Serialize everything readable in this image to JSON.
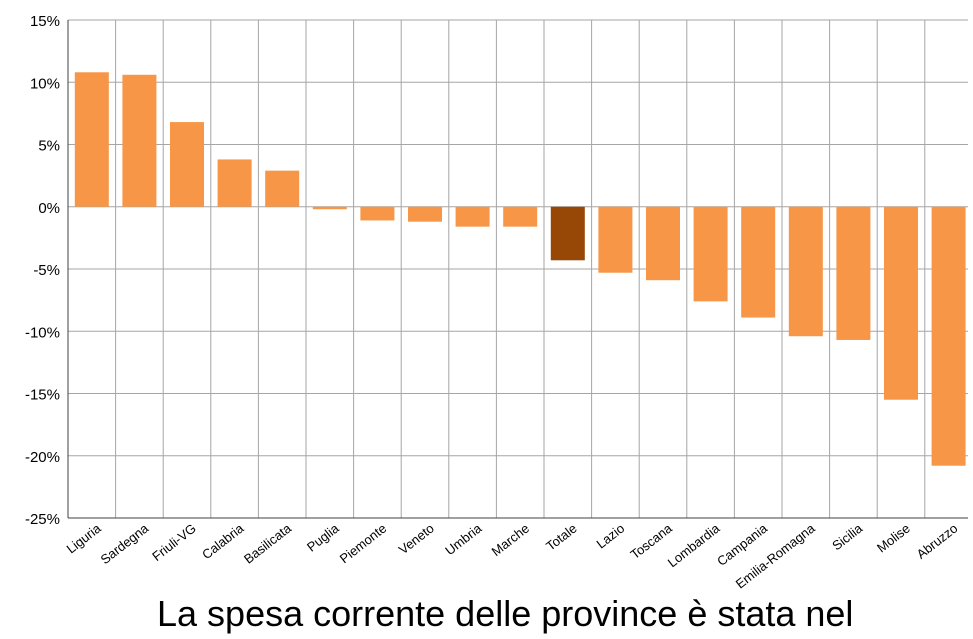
{
  "chart_data": {
    "type": "bar",
    "categories": [
      "Liguria",
      "Sardegna",
      "Friuli-VG",
      "Calabria",
      "Basilicata",
      "Puglia",
      "Piemonte",
      "Veneto",
      "Umbria",
      "Marche",
      "Totale",
      "Lazio",
      "Toscana",
      "Lombardia",
      "Campania",
      "Emilia-Romagna",
      "Sicilia",
      "Molise",
      "Abruzzo"
    ],
    "values": [
      10.8,
      10.6,
      6.8,
      3.8,
      2.9,
      -0.2,
      -1.1,
      -1.2,
      -1.6,
      -1.6,
      -4.3,
      -5.3,
      -5.9,
      -7.6,
      -8.9,
      -10.4,
      -10.7,
      -15.5,
      -20.8
    ],
    "highlight_category": "Totale",
    "ylim": [
      -25,
      15
    ],
    "yticks": [
      15,
      10,
      5,
      0,
      -5,
      -10,
      -15,
      -20,
      -25
    ],
    "ytick_labels": [
      "15%",
      "10%",
      "5%",
      "0%",
      "-5%",
      "-10%",
      "-15%",
      "-20%",
      "-25%"
    ],
    "colors": {
      "bar": "#F79646",
      "highlight": "#974806",
      "grid": "#A6A6A6",
      "axis": "#404040"
    },
    "grid": true,
    "title": "",
    "xlabel": "",
    "ylabel": ""
  },
  "caption": "La spesa corrente delle province è stata nel"
}
